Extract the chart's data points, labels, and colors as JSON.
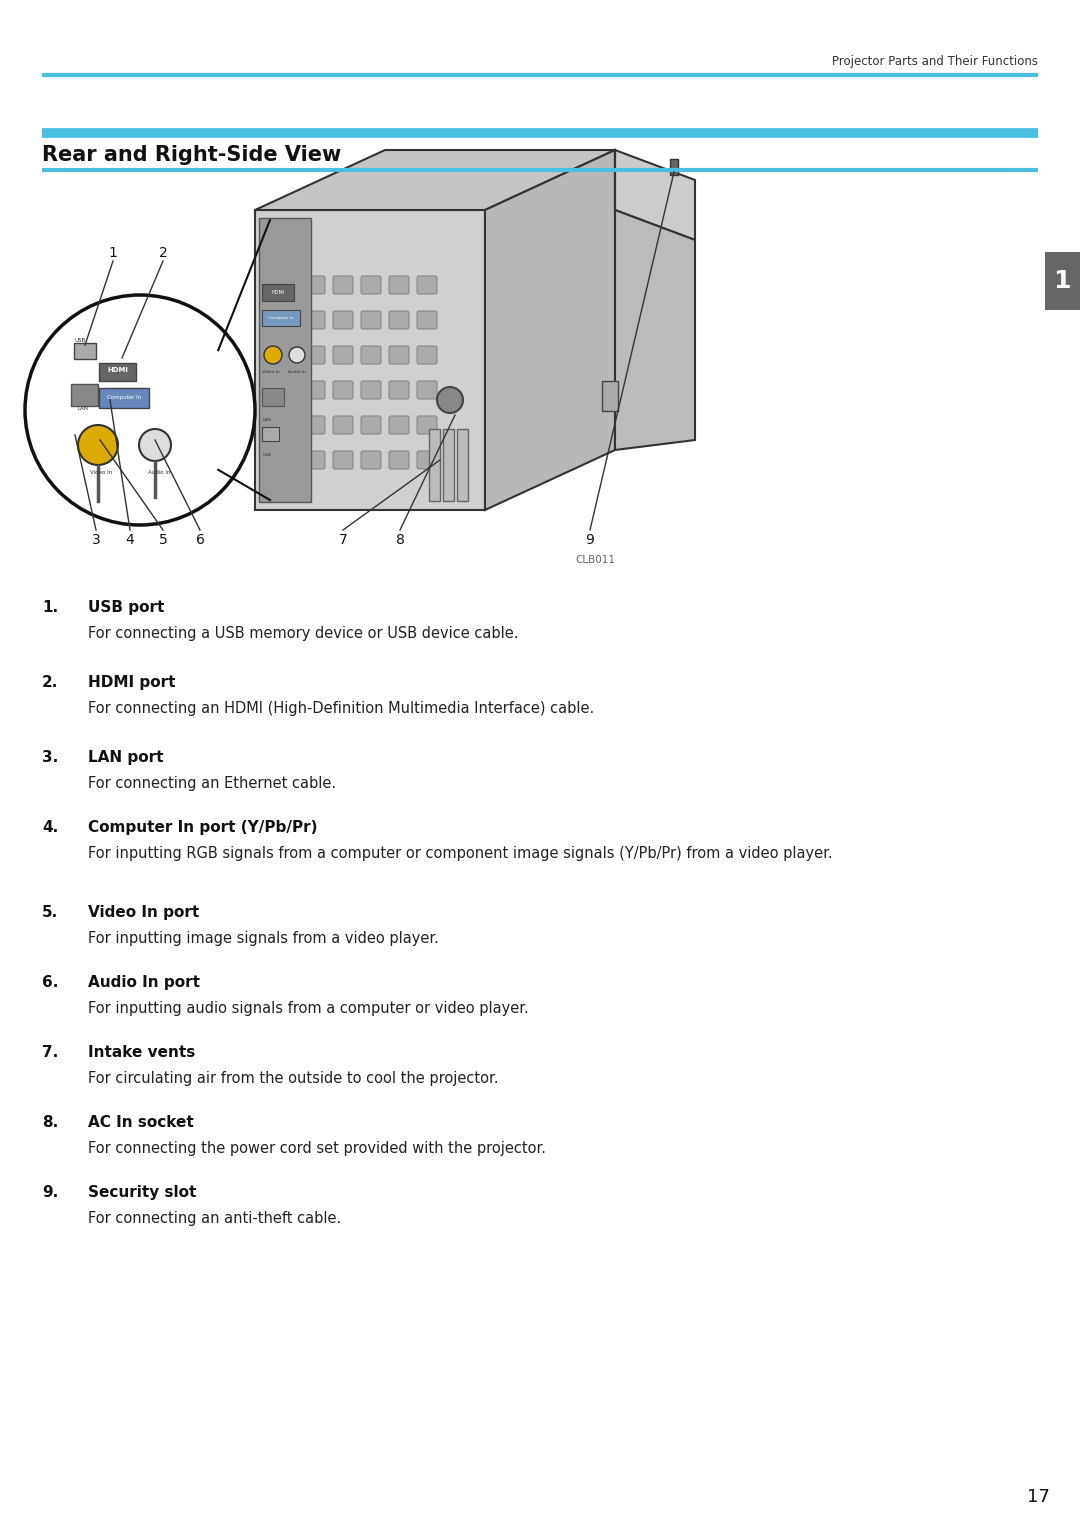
{
  "header_text": "Projector Parts and Their Functions",
  "section_title": "Rear and Right-Side View",
  "cyan_color": "#4BBFE0",
  "tab_label": "1",
  "page_number": "17",
  "diagram_caption": "CLB011",
  "items": [
    {
      "num": "1.",
      "bold": "USB port",
      "desc": "For connecting a USB memory device or USB device cable."
    },
    {
      "num": "2.",
      "bold": "HDMI port",
      "desc": "For connecting an HDMI (High-Definition Multimedia Interface) cable."
    },
    {
      "num": "3.",
      "bold": "LAN port",
      "desc": "For connecting an Ethernet cable."
    },
    {
      "num": "4.",
      "bold": "Computer In port (Y/Pb/Pr)",
      "desc": "For inputting RGB signals from a computer or component image signals (Y/Pb/Pr) from a video player."
    },
    {
      "num": "5.",
      "bold": "Video In port",
      "desc": "For inputting image signals from a video player."
    },
    {
      "num": "6.",
      "bold": "Audio In port",
      "desc": "For inputting audio signals from a computer or video player."
    },
    {
      "num": "7.",
      "bold": "Intake vents",
      "desc": "For circulating air from the outside to cool the projector."
    },
    {
      "num": "8.",
      "bold": "AC In socket",
      "desc": "For connecting the power cord set provided with the projector."
    },
    {
      "num": "9.",
      "bold": "Security slot",
      "desc": "For connecting an anti-theft cable."
    }
  ]
}
